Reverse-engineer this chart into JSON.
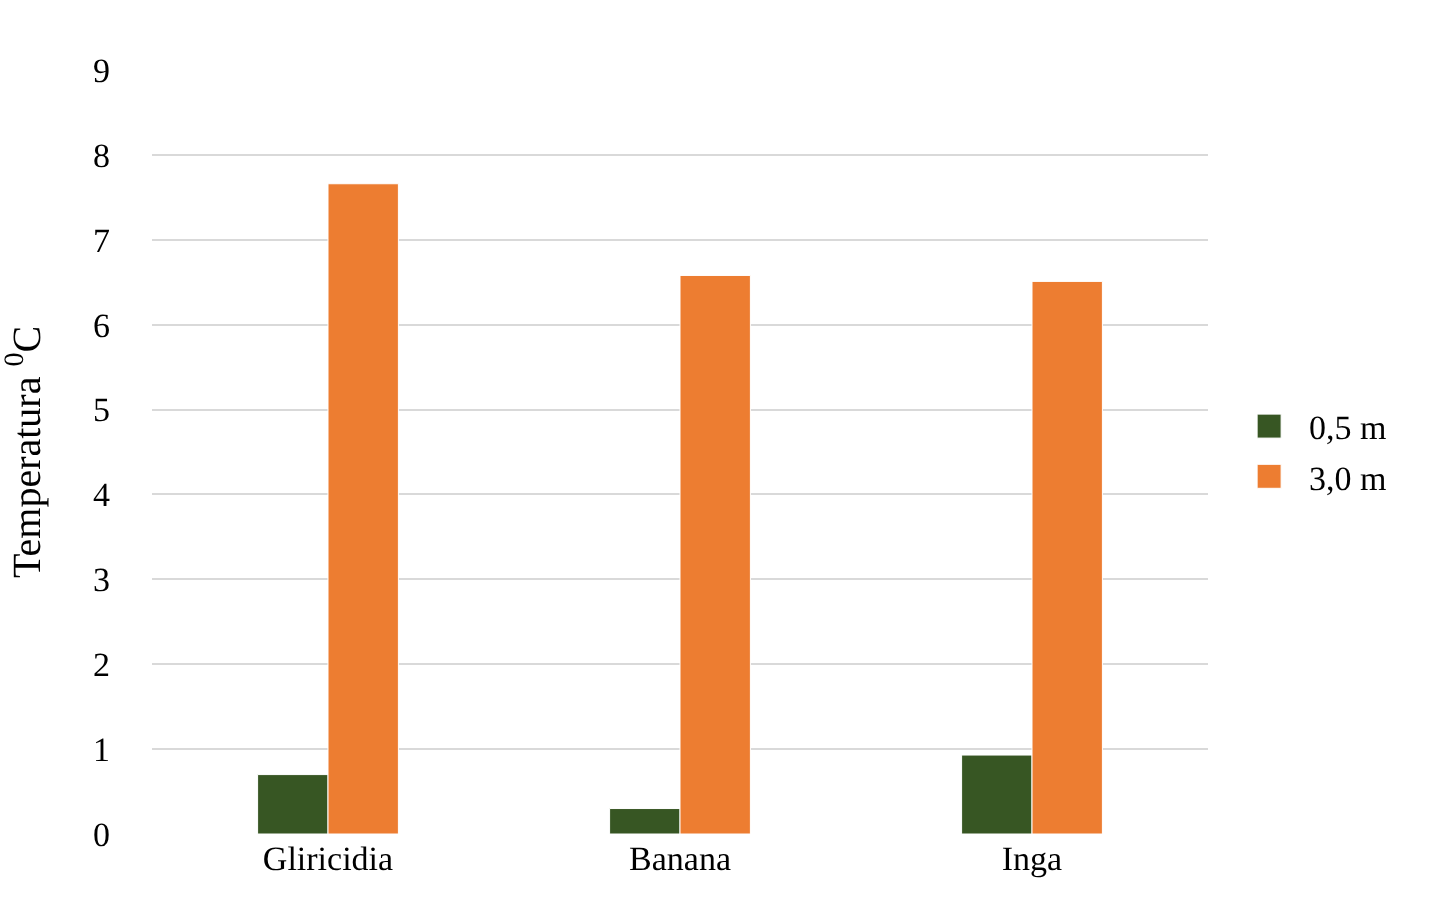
{
  "chart_data": {
    "type": "bar",
    "ylabel": "Temperatura $^{0}$C",
    "categories": [
      "Gliricidia",
      "Banana",
      "Inga"
    ],
    "series": [
      {
        "name": "0,5 m",
        "color": "#375623",
        "values": [
          0.7,
          0.3,
          0.93
        ]
      },
      {
        "name": "3,0 m",
        "color": "#ed7d31",
        "values": [
          7.66,
          6.58,
          6.51
        ]
      }
    ],
    "ylim": [
      0,
      9
    ],
    "yticks": [
      0,
      1,
      2,
      3,
      4,
      5,
      6,
      7,
      8,
      9
    ],
    "grid": "y",
    "legend": "right"
  }
}
